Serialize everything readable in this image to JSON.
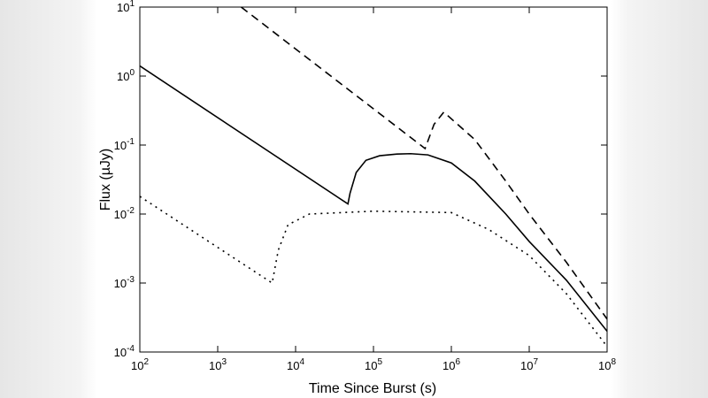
{
  "chart_data": {
    "type": "line",
    "x_label": "Time Since Burst (s)",
    "y_label": "Flux (µJy)",
    "xscale": "log",
    "yscale": "log",
    "xlim": [
      100,
      100000000
    ],
    "ylim": [
      0.0001,
      10
    ],
    "xticks": [
      {
        "value": 100,
        "label": "10^2"
      },
      {
        "value": 1000,
        "label": "10^3"
      },
      {
        "value": 10000,
        "label": "10^4"
      },
      {
        "value": 100000,
        "label": "10^5"
      },
      {
        "value": 1000000,
        "label": "10^6"
      },
      {
        "value": 10000000,
        "label": "10^7"
      },
      {
        "value": 100000000,
        "label": "10^8"
      }
    ],
    "yticks": [
      {
        "value": 0.0001,
        "label": "10^-4"
      },
      {
        "value": 0.001,
        "label": "10^-3"
      },
      {
        "value": 0.01,
        "label": "10^-2"
      },
      {
        "value": 0.1,
        "label": "10^-1"
      },
      {
        "value": 1,
        "label": "10^0"
      },
      {
        "value": 10,
        "label": "10^1"
      }
    ],
    "series": [
      {
        "color": "#000000",
        "dash": "solid",
        "x": [
          100,
          47000,
          50000,
          60000,
          80000,
          120000,
          200000,
          300000,
          500000,
          1000000,
          2000000,
          5000000,
          10000000,
          30000000,
          100000000
        ],
        "values": [
          1.4,
          0.014,
          0.02,
          0.04,
          0.06,
          0.07,
          0.074,
          0.075,
          0.072,
          0.055,
          0.03,
          0.01,
          0.004,
          0.0011,
          0.0002
        ]
      },
      {
        "color": "#000000",
        "dash": "dashed",
        "x": [
          2000,
          460000,
          600000,
          800000,
          2000000,
          5000000,
          10000000,
          30000000,
          100000000
        ],
        "values": [
          10,
          0.089,
          0.2,
          0.3,
          0.12,
          0.03,
          0.01,
          0.002,
          0.0003
        ]
      },
      {
        "color": "#000000",
        "dash": "dotted",
        "x": [
          100,
          5000,
          6000,
          8000,
          15000,
          100000,
          1000000,
          3000000,
          10000000,
          30000000,
          100000000
        ],
        "values": [
          0.018,
          0.001,
          0.003,
          0.007,
          0.01,
          0.011,
          0.0105,
          0.006,
          0.0025,
          0.0007,
          0.00012
        ]
      }
    ]
  }
}
